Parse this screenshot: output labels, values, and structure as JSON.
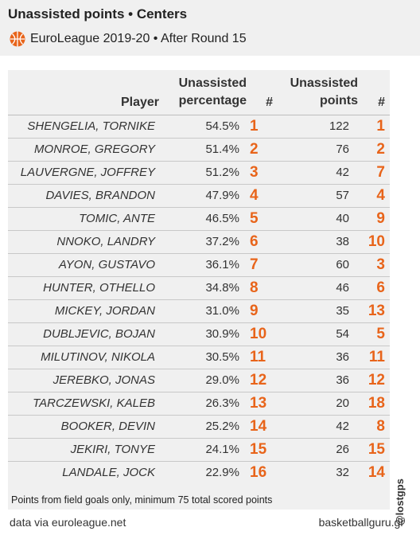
{
  "header": {
    "title": "Unassisted points • Centers",
    "subtitle": "EuroLeague 2019-20 • After Round 15",
    "logo_icon": "euroleague-ball-icon"
  },
  "colors": {
    "accent": "#e8641a",
    "panel": "#f0f0f0",
    "text": "#333333"
  },
  "chart_data": {
    "type": "table",
    "columns": {
      "player": "Player",
      "pct": "Unassisted percentage",
      "pct_rank": "#",
      "points": "Unassisted points",
      "points_rank": "#"
    },
    "rows": [
      {
        "player": "SHENGELIA, TORNIKE",
        "pct": "54.5%",
        "pct_rank": "1",
        "points": "122",
        "points_rank": "1"
      },
      {
        "player": "MONROE, GREGORY",
        "pct": "51.4%",
        "pct_rank": "2",
        "points": "76",
        "points_rank": "2"
      },
      {
        "player": "LAUVERGNE, JOFFREY",
        "pct": "51.2%",
        "pct_rank": "3",
        "points": "42",
        "points_rank": "7"
      },
      {
        "player": "DAVIES, BRANDON",
        "pct": "47.9%",
        "pct_rank": "4",
        "points": "57",
        "points_rank": "4"
      },
      {
        "player": "TOMIC, ANTE",
        "pct": "46.5%",
        "pct_rank": "5",
        "points": "40",
        "points_rank": "9"
      },
      {
        "player": "NNOKO, LANDRY",
        "pct": "37.2%",
        "pct_rank": "6",
        "points": "38",
        "points_rank": "10"
      },
      {
        "player": "AYON, GUSTAVO",
        "pct": "36.1%",
        "pct_rank": "7",
        "points": "60",
        "points_rank": "3"
      },
      {
        "player": "HUNTER, OTHELLO",
        "pct": "34.8%",
        "pct_rank": "8",
        "points": "46",
        "points_rank": "6"
      },
      {
        "player": "MICKEY, JORDAN",
        "pct": "31.0%",
        "pct_rank": "9",
        "points": "35",
        "points_rank": "13"
      },
      {
        "player": "DUBLJEVIC, BOJAN",
        "pct": "30.9%",
        "pct_rank": "10",
        "points": "54",
        "points_rank": "5"
      },
      {
        "player": "MILUTINOV, NIKOLA",
        "pct": "30.5%",
        "pct_rank": "11",
        "points": "36",
        "points_rank": "11"
      },
      {
        "player": "JEREBKO, JONAS",
        "pct": "29.0%",
        "pct_rank": "12",
        "points": "36",
        "points_rank": "12"
      },
      {
        "player": "TARCZEWSKI, KALEB",
        "pct": "26.3%",
        "pct_rank": "13",
        "points": "20",
        "points_rank": "18"
      },
      {
        "player": "BOOKER, DEVIN",
        "pct": "25.2%",
        "pct_rank": "14",
        "points": "42",
        "points_rank": "8"
      },
      {
        "player": "JEKIRI, TONYE",
        "pct": "24.1%",
        "pct_rank": "15",
        "points": "26",
        "points_rank": "15"
      },
      {
        "player": "LANDALE, JOCK",
        "pct": "22.9%",
        "pct_rank": "16",
        "points": "32",
        "points_rank": "14"
      }
    ]
  },
  "footnote": "Points from field goals only, minimum 75 total scored points",
  "footer": {
    "source": "data via euroleague.net",
    "site": "basketballguru.gr",
    "handle": "@lostgps"
  }
}
